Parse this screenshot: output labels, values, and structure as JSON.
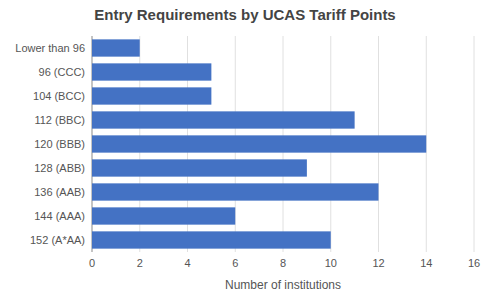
{
  "chart_data": {
    "type": "bar",
    "orientation": "horizontal",
    "title": "Entry Requirements by UCAS Tariff Points",
    "xlabel": "Number of institutions",
    "categories": [
      "Lower than 96",
      "96 (CCC)",
      "104 (BCC)",
      "112 (BBC)",
      "120 (BBB)",
      "128 (ABB)",
      "136 (AAB)",
      "144 (AAA)",
      "152 (A*AA)"
    ],
    "values": [
      2,
      5,
      5,
      11,
      14,
      9,
      12,
      6,
      10
    ],
    "color": "#4472C4",
    "xlim": [
      0,
      16
    ],
    "xticks": [
      0,
      2,
      4,
      6,
      8,
      10,
      12,
      14,
      16
    ],
    "grid": true
  }
}
